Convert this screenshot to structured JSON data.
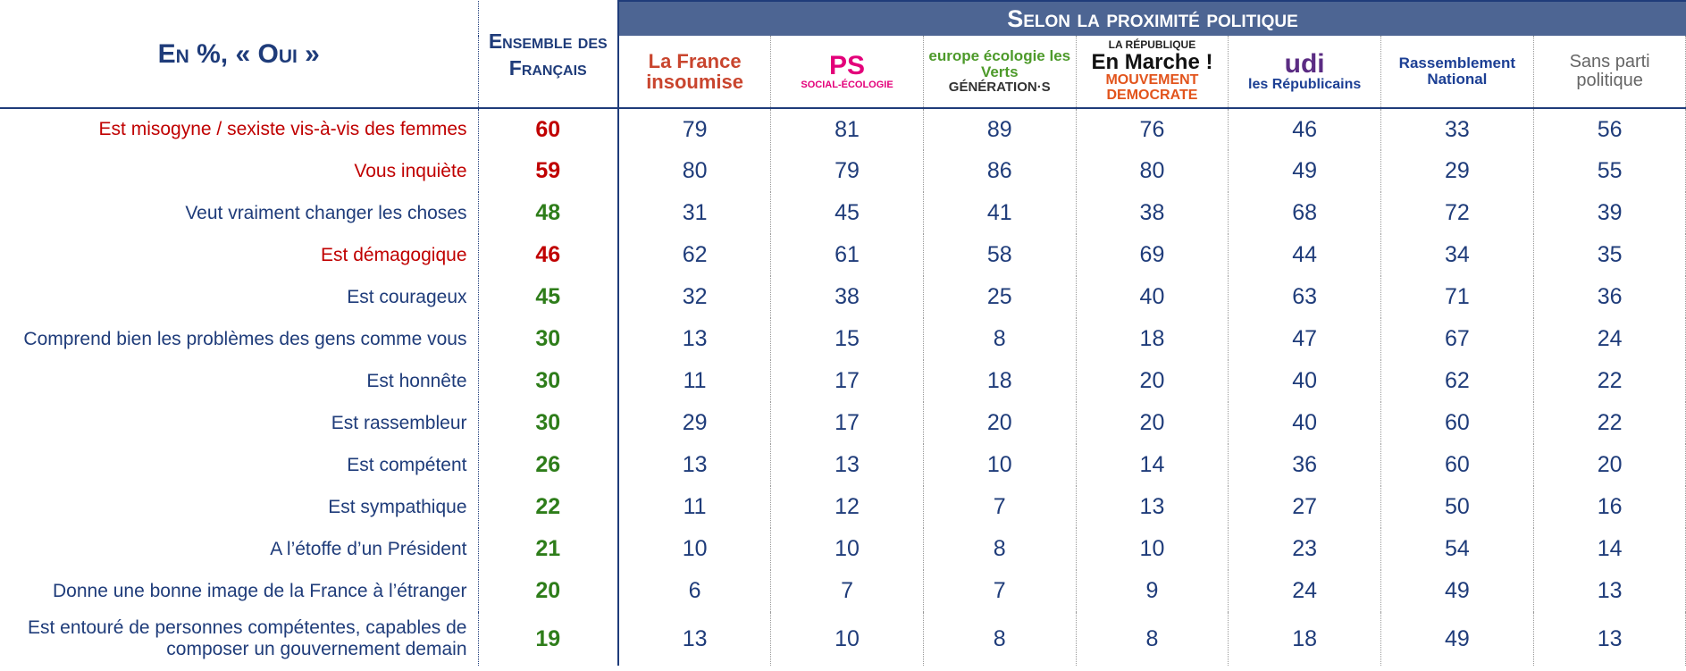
{
  "header": {
    "title": "En %, « Oui »",
    "ensemble": "Ensemble des Français",
    "group": "Selon la proximité politique"
  },
  "parties": [
    {
      "logo": [
        {
          "text": "La France insoumise",
          "color": "#c9452e"
        }
      ]
    },
    {
      "logo": [
        {
          "text": "PS",
          "color": "#e3007a"
        },
        {
          "text": "SOCIAL-ÉCOLOGIE",
          "color": "#e3007a"
        }
      ]
    },
    {
      "logo": [
        {
          "text": "europe écologie les Verts",
          "color": "#4d9a2a"
        },
        {
          "text": "GÉNÉRATION·S",
          "color": "#333333"
        }
      ]
    },
    {
      "logo": [
        {
          "text": "LA RÉPUBLIQUE",
          "color": "#222222"
        },
        {
          "text": "En Marche !",
          "color": "#111111"
        },
        {
          "text": "MOUVEMENT DEMOCRATE",
          "color": "#e2541c"
        }
      ]
    },
    {
      "logo": [
        {
          "text": "udi",
          "color": "#5b2c83"
        },
        {
          "text": "les Républicains",
          "color": "#1c3f94"
        }
      ]
    },
    {
      "logo": [
        {
          "text": "Rassemblement National",
          "color": "#1c3f94"
        }
      ]
    },
    {
      "logo": [
        {
          "text": "Sans parti politique",
          "color": "#666666"
        }
      ]
    }
  ],
  "table": {
    "rows": [
      {
        "label": "Est misogyne / sexiste vis-à-vis des femmes",
        "color": "#c00000",
        "value_color": "#c00000",
        "ensemble": "60",
        "values": [
          "79",
          "81",
          "89",
          "76",
          "46",
          "33",
          "56"
        ]
      },
      {
        "label": "Vous inquiète",
        "color": "#c00000",
        "value_color": "#c00000",
        "ensemble": "59",
        "values": [
          "80",
          "79",
          "86",
          "80",
          "49",
          "29",
          "55"
        ]
      },
      {
        "label": "Veut vraiment changer les choses",
        "color": "#1f3c7a",
        "value_color": "#2e7d1a",
        "ensemble": "48",
        "values": [
          "31",
          "45",
          "41",
          "38",
          "68",
          "72",
          "39"
        ]
      },
      {
        "label": "Est démagogique",
        "color": "#c00000",
        "value_color": "#c00000",
        "ensemble": "46",
        "values": [
          "62",
          "61",
          "58",
          "69",
          "44",
          "34",
          "35"
        ]
      },
      {
        "label": "Est courageux",
        "color": "#1f3c7a",
        "value_color": "#2e7d1a",
        "ensemble": "45",
        "values": [
          "32",
          "38",
          "25",
          "40",
          "63",
          "71",
          "36"
        ]
      },
      {
        "label": "Comprend bien les problèmes des gens comme vous",
        "color": "#1f3c7a",
        "value_color": "#2e7d1a",
        "ensemble": "30",
        "values": [
          "13",
          "15",
          "8",
          "18",
          "47",
          "67",
          "24"
        ]
      },
      {
        "label": "Est honnête",
        "color": "#1f3c7a",
        "value_color": "#2e7d1a",
        "ensemble": "30",
        "values": [
          "11",
          "17",
          "18",
          "20",
          "40",
          "62",
          "22"
        ]
      },
      {
        "label": "Est rassembleur",
        "color": "#1f3c7a",
        "value_color": "#2e7d1a",
        "ensemble": "30",
        "values": [
          "29",
          "17",
          "20",
          "20",
          "40",
          "60",
          "22"
        ]
      },
      {
        "label": "Est compétent",
        "color": "#1f3c7a",
        "value_color": "#2e7d1a",
        "ensemble": "26",
        "values": [
          "13",
          "13",
          "10",
          "14",
          "36",
          "60",
          "20"
        ]
      },
      {
        "label": "Est sympathique",
        "color": "#1f3c7a",
        "value_color": "#2e7d1a",
        "ensemble": "22",
        "values": [
          "11",
          "12",
          "7",
          "13",
          "27",
          "50",
          "16"
        ]
      },
      {
        "label": "A l’étoffe d’un Président",
        "color": "#1f3c7a",
        "value_color": "#2e7d1a",
        "ensemble": "21",
        "values": [
          "10",
          "10",
          "8",
          "10",
          "23",
          "54",
          "14"
        ]
      },
      {
        "label": "Donne une bonne image de la France à l’étranger",
        "color": "#1f3c7a",
        "value_color": "#2e7d1a",
        "ensemble": "20",
        "values": [
          "6",
          "7",
          "7",
          "9",
          "24",
          "49",
          "13"
        ]
      },
      {
        "label": "Est entouré de personnes compétentes, capables de composer un gouvernement demain",
        "color": "#1f3c7a",
        "value_color": "#2e7d1a",
        "ensemble": "19",
        "values": [
          "13",
          "10",
          "8",
          "8",
          "18",
          "49",
          "13"
        ]
      }
    ]
  }
}
